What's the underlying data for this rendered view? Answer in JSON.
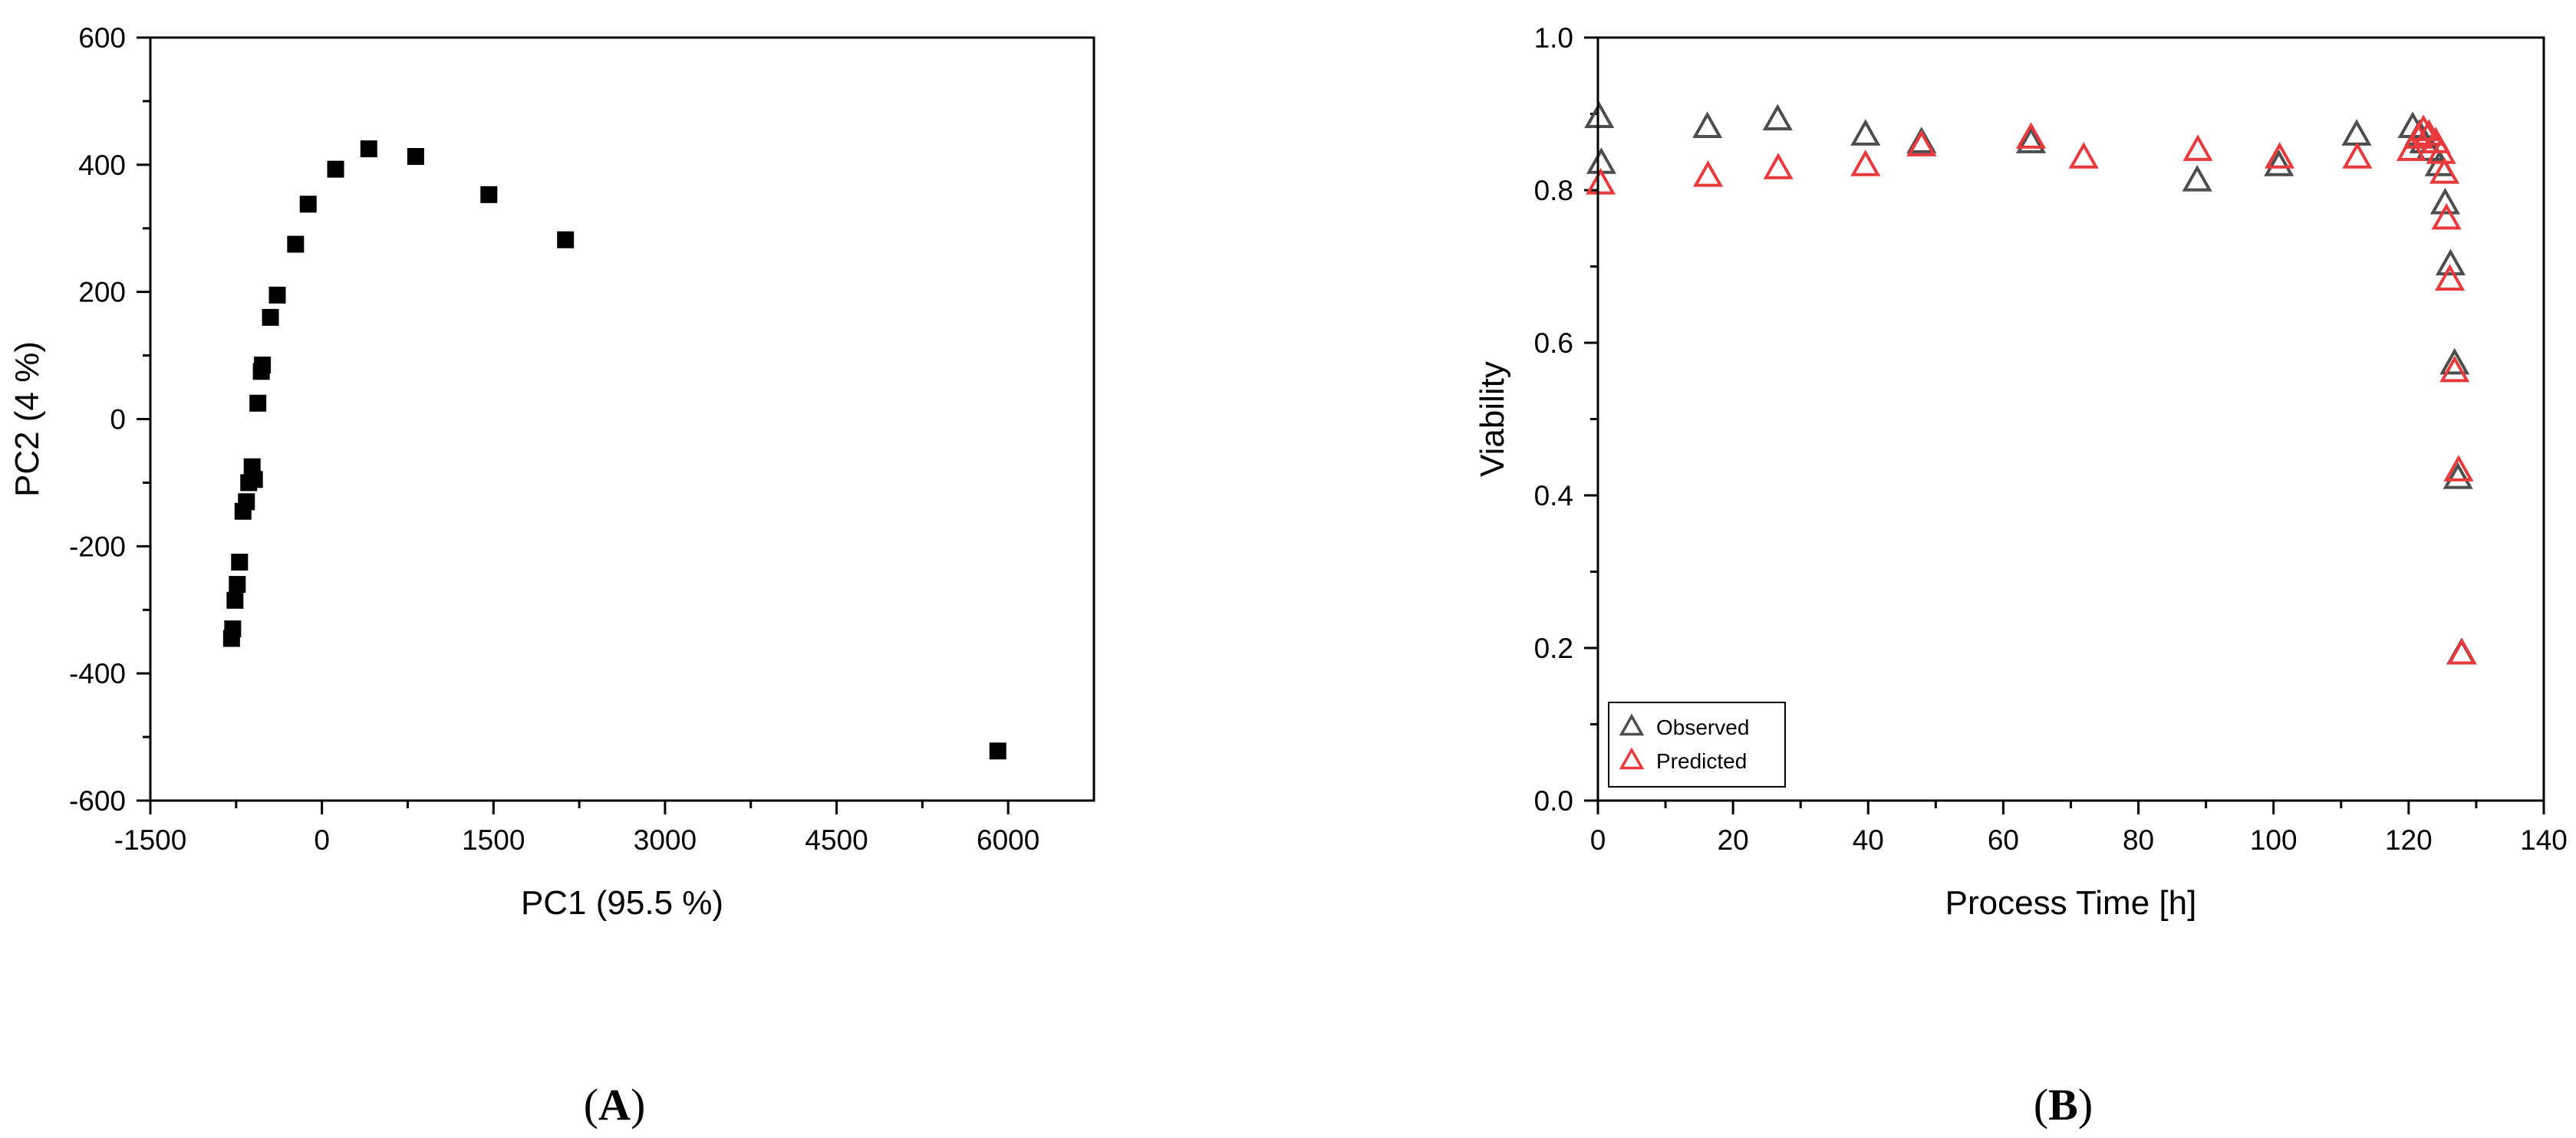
{
  "chart_data": [
    {
      "type": "scatter",
      "panel_label": "(A)",
      "xlabel": "PC1 (95.5 %)",
      "ylabel": "PC2 (4 %)",
      "xlim": [
        -1500,
        6750
      ],
      "ylim": [
        -600,
        600
      ],
      "xticks": [
        -1500,
        0,
        1500,
        3000,
        4500,
        6000
      ],
      "xtick_labels": [
        "-1500",
        "0",
        "1500",
        "3000",
        "4500",
        "6000"
      ],
      "yticks": [
        -600,
        -400,
        -200,
        0,
        200,
        400,
        600
      ],
      "ytick_labels": [
        "-600",
        "-400",
        "-200",
        "0",
        "200",
        "400",
        "600"
      ],
      "grid": false,
      "series": [
        {
          "marker": "square",
          "color": "#000000",
          "points": [
            [
              -790,
              -345
            ],
            [
              -780,
              -330
            ],
            [
              -760,
              -285
            ],
            [
              -740,
              -260
            ],
            [
              -720,
              -225
            ],
            [
              -690,
              -145
            ],
            [
              -660,
              -130
            ],
            [
              -640,
              -100
            ],
            [
              -610,
              -75
            ],
            [
              -590,
              -95
            ],
            [
              -560,
              25
            ],
            [
              -530,
              75
            ],
            [
              -520,
              85
            ],
            [
              -450,
              160
            ],
            [
              -390,
              195
            ],
            [
              -230,
              275
            ],
            [
              -120,
              338
            ],
            [
              120,
              393
            ],
            [
              410,
              425
            ],
            [
              820,
              413
            ],
            [
              1460,
              353
            ],
            [
              2130,
              282
            ],
            [
              5910,
              -522
            ]
          ]
        }
      ]
    },
    {
      "type": "scatter",
      "panel_label": "(B)",
      "xlabel": "Process Time [h]",
      "ylabel": "Viability",
      "xlim": [
        0,
        140
      ],
      "ylim": [
        0,
        1.0
      ],
      "xticks": [
        0,
        20,
        40,
        60,
        80,
        100,
        120,
        140
      ],
      "xtick_labels": [
        "0",
        "20",
        "40",
        "60",
        "80",
        "100",
        "120",
        "140"
      ],
      "yticks": [
        0,
        0.2,
        0.4,
        0.6,
        0.8,
        1.0
      ],
      "ytick_labels": [
        "0.0",
        "0.2",
        "0.4",
        "0.6",
        "0.8",
        "1.0"
      ],
      "grid": false,
      "legend_position": "bottom-left",
      "series": [
        {
          "name": "Observed",
          "marker": "triangle",
          "color": "#4d4d4d",
          "points": [
            [
              0.2,
              0.895
            ],
            [
              0.5,
              0.835
            ],
            [
              16.2,
              0.882
            ],
            [
              26.6,
              0.892
            ],
            [
              39.6,
              0.872
            ],
            [
              47.9,
              0.862
            ],
            [
              64.1,
              0.862
            ],
            [
              88.7,
              0.812
            ],
            [
              100.8,
              0.832
            ],
            [
              112.3,
              0.872
            ],
            [
              120.6,
              0.882
            ],
            [
              121.6,
              0.872
            ],
            [
              122.3,
              0.862
            ],
            [
              123.2,
              0.852
            ],
            [
              124.6,
              0.832
            ],
            [
              125.4,
              0.782
            ],
            [
              126.2,
              0.702
            ],
            [
              126.8,
              0.572
            ],
            [
              127.3,
              0.422
            ],
            [
              127.8,
              0.192
            ]
          ]
        },
        {
          "name": "Predicted",
          "marker": "triangle",
          "color": "#e8393c",
          "points": [
            [
              0.4,
              0.808
            ],
            [
              16.3,
              0.818
            ],
            [
              26.7,
              0.828
            ],
            [
              39.6,
              0.832
            ],
            [
              47.9,
              0.858
            ],
            [
              64.1,
              0.868
            ],
            [
              71.9,
              0.842
            ],
            [
              88.8,
              0.852
            ],
            [
              100.9,
              0.842
            ],
            [
              112.4,
              0.842
            ],
            [
              120.4,
              0.852
            ],
            [
              121.4,
              0.868
            ],
            [
              122.2,
              0.878
            ],
            [
              123.0,
              0.872
            ],
            [
              124.0,
              0.862
            ],
            [
              124.8,
              0.848
            ],
            [
              125.3,
              0.822
            ],
            [
              125.6,
              0.762
            ],
            [
              126.1,
              0.682
            ],
            [
              126.8,
              0.562
            ],
            [
              127.4,
              0.432
            ],
            [
              127.9,
              0.192
            ]
          ]
        }
      ]
    }
  ]
}
